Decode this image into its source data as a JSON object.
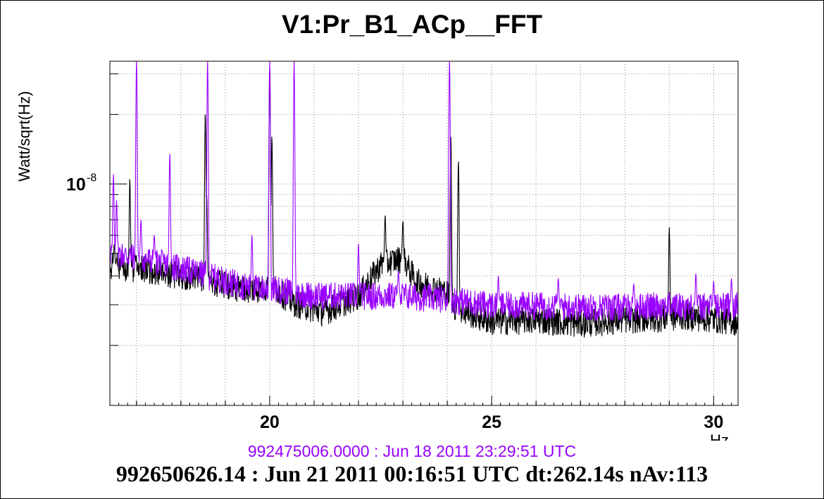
{
  "chart_data": {
    "type": "line",
    "title": "V1:Pr_B1_ACp__FFT",
    "ylabel": "Watt/sqrt(Hz)",
    "xlabel": "Hz",
    "xlim": [
      16.4,
      30.55
    ],
    "ylim": [
      1.1e-09,
      3.4e-08
    ],
    "yscale": "log",
    "grid": true,
    "x_ticks": [
      20,
      25,
      30
    ],
    "y_ticks": [
      {
        "value": 1e-08,
        "base": "10",
        "exp": "-8"
      }
    ],
    "series": [
      {
        "color": "#9900ff",
        "baseline": [
          [
            16.4,
            5.1e-09
          ],
          [
            17.5,
            4.6e-09
          ],
          [
            18.5,
            4.1e-09
          ],
          [
            19.5,
            3.6e-09
          ],
          [
            20.2,
            3.5e-09
          ],
          [
            21,
            3.3e-09
          ],
          [
            22,
            3.3e-09
          ],
          [
            23,
            3.3e-09
          ],
          [
            24,
            3.2e-09
          ],
          [
            24.5,
            3.1e-09
          ],
          [
            25,
            3e-09
          ],
          [
            26,
            3e-09
          ],
          [
            27,
            2.95e-09
          ],
          [
            28,
            2.95e-09
          ],
          [
            29,
            3e-09
          ],
          [
            29.5,
            2.95e-09
          ],
          [
            30.55,
            3e-09
          ]
        ],
        "peaks": [
          [
            16.48,
            1.1e-08
          ],
          [
            16.55,
            8.5e-09
          ],
          [
            17.0,
            3.4e-08
          ],
          [
            17.1,
            7e-09
          ],
          [
            17.4,
            6e-09
          ],
          [
            17.75,
            1.35e-08
          ],
          [
            18.6,
            3.4e-08
          ],
          [
            19.6,
            6e-09
          ],
          [
            20.0,
            3.4e-08
          ],
          [
            20.55,
            3.4e-08
          ],
          [
            22.0,
            5.5e-09
          ],
          [
            22.9,
            4.2e-09
          ],
          [
            24.05,
            3.4e-08
          ],
          [
            25.15,
            4e-09
          ],
          [
            26.5,
            3.9e-09
          ],
          [
            28.2,
            3.7e-09
          ],
          [
            29.6,
            4.1e-09
          ],
          [
            30.0,
            3.8e-09
          ],
          [
            30.4,
            3.9e-09
          ]
        ]
      },
      {
        "color": "#000000",
        "baseline": [
          [
            16.4,
            4.5e-09
          ],
          [
            17.5,
            4.2e-09
          ],
          [
            18.5,
            3.9e-09
          ],
          [
            19.5,
            3.5e-09
          ],
          [
            20.1,
            3.6e-09
          ],
          [
            20.5,
            3.1e-09
          ],
          [
            21.2,
            2.8e-09
          ],
          [
            22,
            3.3e-09
          ],
          [
            22.5,
            4.5e-09
          ],
          [
            23,
            4.8e-09
          ],
          [
            23.3,
            3.8e-09
          ],
          [
            24,
            3.4e-09
          ],
          [
            24.2,
            2.9e-09
          ],
          [
            25,
            2.55e-09
          ],
          [
            26,
            2.6e-09
          ],
          [
            27,
            2.5e-09
          ],
          [
            28,
            2.6e-09
          ],
          [
            29,
            2.65e-09
          ],
          [
            29.3,
            2.7e-09
          ],
          [
            30.55,
            2.55e-09
          ]
        ],
        "peaks": [
          [
            16.5,
            5.5e-09
          ],
          [
            16.85,
            1.05e-08
          ],
          [
            18.55,
            2e-08
          ],
          [
            18.58,
            9e-09
          ],
          [
            20.0,
            3.2e-08
          ],
          [
            20.05,
            1.6e-08
          ],
          [
            22.6,
            7.3e-09
          ],
          [
            23.0,
            6.9e-09
          ],
          [
            24.08,
            1.6e-08
          ],
          [
            24.25,
            1.25e-08
          ],
          [
            29.0,
            6.5e-09
          ]
        ]
      }
    ]
  },
  "footer": {
    "ref_text": "992475006.0000 : Jun 18 2011 23:29:51 UTC",
    "cur_text": "992650626.14 : Jun 21 2011 00:16:51 UTC dt:262.14s nAv:113"
  }
}
